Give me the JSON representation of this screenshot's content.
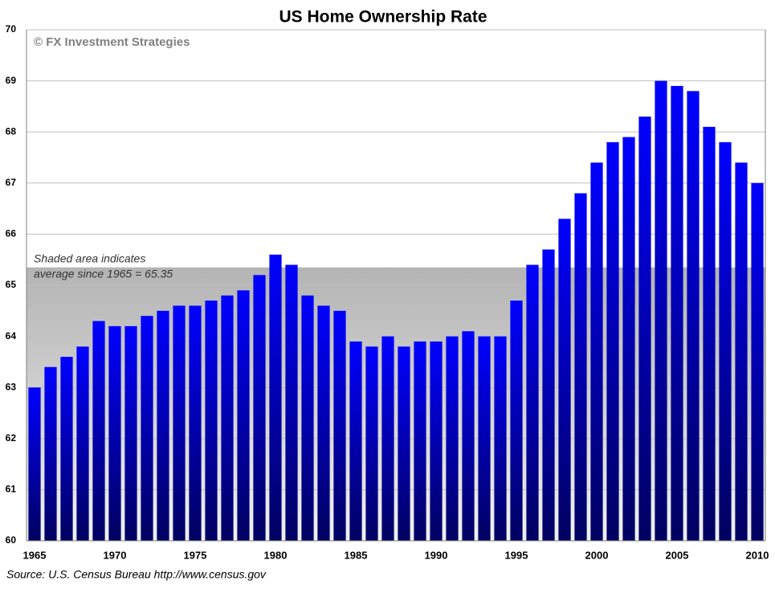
{
  "chart_data": {
    "type": "bar",
    "title": "US Home Ownership Rate",
    "copyright": "© FX Investment Strategies",
    "source": "Source: U.S. Census Bureau  http://www.census.gov",
    "annotation": [
      "Shaded area indicates",
      "average since 1965 = 65.35"
    ],
    "average": 65.35,
    "categories": [
      "1965",
      null,
      null,
      null,
      null,
      "1970",
      null,
      null,
      null,
      null,
      "1975",
      null,
      null,
      null,
      null,
      "1980",
      null,
      null,
      null,
      null,
      "1985",
      null,
      null,
      null,
      null,
      "1990",
      null,
      null,
      null,
      null,
      "1995",
      null,
      null,
      null,
      null,
      "2000",
      null,
      null,
      null,
      null,
      "2005",
      null,
      null,
      null,
      null,
      "2010"
    ],
    "values": [
      63.0,
      63.4,
      63.6,
      63.8,
      64.3,
      64.2,
      64.2,
      64.4,
      64.5,
      64.6,
      64.6,
      64.7,
      64.8,
      64.9,
      65.2,
      65.6,
      65.4,
      64.8,
      64.6,
      64.5,
      63.9,
      63.8,
      64.0,
      63.8,
      63.9,
      63.9,
      64.0,
      64.1,
      64.0,
      64.0,
      64.7,
      65.4,
      65.7,
      66.3,
      66.8,
      67.4,
      67.8,
      67.9,
      68.3,
      69.0,
      68.9,
      68.8,
      68.1,
      67.8,
      67.4,
      67.0
    ],
    "color": "#0000ff",
    "ylim": [
      60,
      70
    ],
    "yticks": [
      60,
      61,
      62,
      63,
      64,
      65,
      66,
      67,
      68,
      69,
      70
    ],
    "grid": true
  }
}
